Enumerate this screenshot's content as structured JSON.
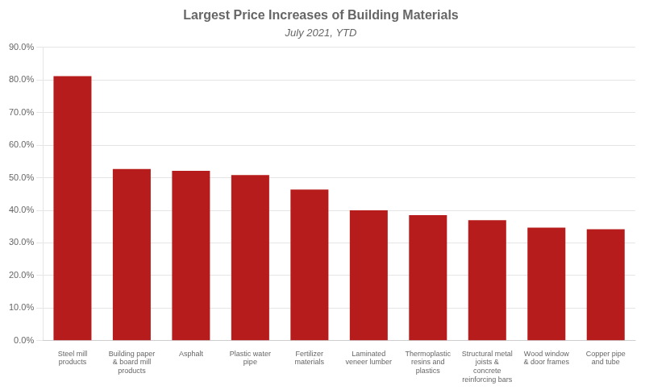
{
  "chart_data": {
    "type": "bar",
    "title": "Largest Price Increases of Building Materials",
    "subtitle": "July 2021, YTD",
    "categories": [
      "Steel mill\nproducts",
      "Building paper\n& board mill\nproducts",
      "Asphalt",
      "Plastic water\npipe",
      "Fertilizer\nmaterials",
      "Laminated\nveneer lumber",
      "Thermoplastic\nresins and\nplastics",
      "Structural metal\njoists &\nconcrete\nreinforcing bars",
      "Wood window\n& door frames",
      "Copper pipe\nand tube"
    ],
    "values": [
      0.812,
      0.527,
      0.521,
      0.508,
      0.464,
      0.4,
      0.385,
      0.37,
      0.347,
      0.342
    ],
    "color": "#b71c1c",
    "ylim": [
      0,
      0.9
    ],
    "yticks": [
      {
        "value": 0.0,
        "label": "0.0%"
      },
      {
        "value": 0.1,
        "label": "10.0%"
      },
      {
        "value": 0.2,
        "label": "20.0%"
      },
      {
        "value": 0.3,
        "label": "30.0%"
      },
      {
        "value": 0.4,
        "label": "40.0%"
      },
      {
        "value": 0.5,
        "label": "50.0%"
      },
      {
        "value": 0.6,
        "label": "60.0%"
      },
      {
        "value": 0.7,
        "label": "70.0%"
      },
      {
        "value": 0.8,
        "label": "80.0%"
      },
      {
        "value": 0.9,
        "label": "90.0%"
      }
    ],
    "grid": true
  }
}
